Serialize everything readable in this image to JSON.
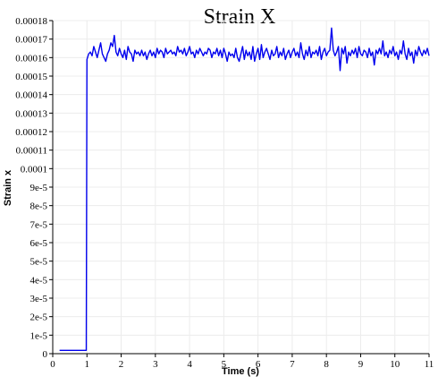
{
  "chart_data": {
    "type": "line",
    "title": "Strain X",
    "xlabel": "Time (s)",
    "ylabel": "Strain x",
    "xlim": [
      0,
      11
    ],
    "ylim": [
      0,
      0.00018
    ],
    "grid": true,
    "legend": "none",
    "x_ticks": [
      0,
      1,
      2,
      3,
      4,
      5,
      6,
      7,
      8,
      9,
      10,
      11
    ],
    "x_tick_labels": [
      "0",
      "1",
      "2",
      "3",
      "4",
      "5",
      "6",
      "7",
      "8",
      "9",
      "10",
      "11"
    ],
    "y_ticks": [
      0,
      1e-05,
      2e-05,
      3e-05,
      4e-05,
      5e-05,
      6e-05,
      7e-05,
      8e-05,
      9e-05,
      0.0001,
      0.00011,
      0.00012,
      0.00013,
      0.00014,
      0.00015,
      0.00016,
      0.00017,
      0.00018
    ],
    "y_tick_labels": [
      "0",
      "1e-5",
      "2e-5",
      "3e-5",
      "4e-5",
      "5e-5",
      "6e-5",
      "7e-5",
      "8e-5",
      "9e-5",
      "0.0001",
      "0.00011",
      "0.00012",
      "0.00013",
      "0.00014",
      "0.00015",
      "0.00016",
      "0.00017",
      "0.00018"
    ],
    "series": [
      {
        "color": "#0000ee",
        "x": [
          0.2,
          0.4,
          0.6,
          0.8,
          0.98,
          1.0,
          1.05,
          1.1,
          1.15,
          1.2,
          1.25,
          1.3,
          1.35,
          1.4,
          1.45,
          1.5,
          1.55,
          1.6,
          1.65,
          1.7,
          1.75,
          1.8,
          1.85,
          1.9,
          1.95,
          2.0,
          2.05,
          2.1,
          2.15,
          2.2,
          2.25,
          2.3,
          2.35,
          2.4,
          2.45,
          2.5,
          2.55,
          2.6,
          2.65,
          2.7,
          2.75,
          2.8,
          2.85,
          2.9,
          2.95,
          3.0,
          3.05,
          3.1,
          3.15,
          3.2,
          3.25,
          3.3,
          3.35,
          3.4,
          3.45,
          3.5,
          3.55,
          3.6,
          3.65,
          3.7,
          3.75,
          3.8,
          3.85,
          3.9,
          3.95,
          4.0,
          4.05,
          4.1,
          4.15,
          4.2,
          4.25,
          4.3,
          4.35,
          4.4,
          4.45,
          4.5,
          4.55,
          4.6,
          4.65,
          4.7,
          4.75,
          4.8,
          4.85,
          4.9,
          4.95,
          5.0,
          5.05,
          5.1,
          5.15,
          5.2,
          5.25,
          5.3,
          5.35,
          5.4,
          5.45,
          5.5,
          5.55,
          5.6,
          5.65,
          5.7,
          5.75,
          5.8,
          5.85,
          5.9,
          5.95,
          6.0,
          6.05,
          6.1,
          6.15,
          6.2,
          6.25,
          6.3,
          6.35,
          6.4,
          6.45,
          6.5,
          6.55,
          6.6,
          6.65,
          6.7,
          6.75,
          6.8,
          6.85,
          6.9,
          6.95,
          7.0,
          7.05,
          7.1,
          7.15,
          7.2,
          7.25,
          7.3,
          7.35,
          7.4,
          7.45,
          7.5,
          7.55,
          7.6,
          7.65,
          7.7,
          7.75,
          7.8,
          7.85,
          7.9,
          7.95,
          8.0,
          8.05,
          8.1,
          8.15,
          8.2,
          8.25,
          8.3,
          8.35,
          8.4,
          8.45,
          8.5,
          8.55,
          8.6,
          8.65,
          8.7,
          8.75,
          8.8,
          8.85,
          8.9,
          8.95,
          9.0,
          9.05,
          9.1,
          9.15,
          9.2,
          9.25,
          9.3,
          9.35,
          9.4,
          9.45,
          9.5,
          9.55,
          9.6,
          9.65,
          9.7,
          9.75,
          9.8,
          9.85,
          9.9,
          9.95,
          10.0,
          10.05,
          10.1,
          10.15,
          10.2,
          10.25,
          10.3,
          10.35,
          10.4,
          10.45,
          10.5,
          10.55,
          10.6,
          10.65,
          10.7,
          10.75,
          10.8,
          10.85,
          10.9,
          10.95,
          11.0
        ],
        "y": [
          1.8e-06,
          1.8e-06,
          1.8e-06,
          1.8e-06,
          1.8e-06,
          0.000159,
          0.000162,
          0.000163,
          0.000161,
          0.000166,
          0.000163,
          0.00016,
          0.000164,
          0.000168,
          0.000162,
          0.00016,
          0.000158,
          0.000162,
          0.000164,
          0.000168,
          0.000166,
          0.000172,
          0.000163,
          0.000161,
          0.000165,
          0.000162,
          0.00016,
          0.000164,
          0.000159,
          0.000166,
          0.000163,
          0.000162,
          0.000158,
          0.000164,
          0.000162,
          0.000163,
          0.000161,
          0.000164,
          0.000161,
          0.000163,
          0.000159,
          0.000162,
          0.000164,
          0.000161,
          0.000163,
          0.00016,
          0.000165,
          0.000162,
          0.000164,
          0.000163,
          0.00016,
          0.000165,
          0.000162,
          0.000163,
          0.000164,
          0.000162,
          0.000163,
          0.000161,
          0.000166,
          0.000163,
          0.000164,
          0.000162,
          0.000165,
          0.000161,
          0.000163,
          0.000166,
          0.000162,
          0.000163,
          0.00016,
          0.000164,
          0.000162,
          0.000165,
          0.000163,
          0.000161,
          0.000163,
          0.000162,
          0.000165,
          0.000164,
          0.00016,
          0.000163,
          0.000162,
          0.000165,
          0.000161,
          0.000164,
          0.00016,
          0.000165,
          0.000162,
          0.000158,
          0.000163,
          0.000161,
          0.000162,
          0.00016,
          0.000165,
          0.00016,
          0.000158,
          0.000162,
          0.000166,
          0.000159,
          0.000164,
          0.000161,
          0.000163,
          0.000159,
          0.000166,
          0.000158,
          0.000162,
          0.000165,
          0.000159,
          0.000167,
          0.00016,
          0.000163,
          0.000165,
          0.000162,
          0.000159,
          0.000164,
          0.000161,
          0.000162,
          0.000166,
          0.00016,
          0.000163,
          0.000161,
          0.000165,
          0.000159,
          0.000162,
          0.000164,
          0.00016,
          0.000163,
          0.000165,
          0.000161,
          0.000163,
          0.00016,
          0.000168,
          0.000162,
          0.000159,
          0.000164,
          0.000161,
          0.000166,
          0.00016,
          0.000163,
          0.000162,
          0.000164,
          0.000161,
          0.000166,
          0.000159,
          0.000163,
          0.000165,
          0.000161,
          0.000163,
          0.000164,
          0.000176,
          0.000164,
          0.000161,
          0.000163,
          0.000166,
          0.000153,
          0.000165,
          0.000162,
          0.000166,
          0.000157,
          0.000163,
          0.000161,
          0.000164,
          0.000162,
          0.000165,
          0.00016,
          0.000166,
          0.000162,
          0.000161,
          0.000164,
          0.000163,
          0.00016,
          0.000165,
          0.000161,
          0.000163,
          0.000156,
          0.000164,
          0.000162,
          0.000165,
          0.000162,
          0.000169,
          0.000161,
          0.000163,
          0.00016,
          0.000164,
          0.000162,
          0.000166,
          0.000161,
          0.000163,
          0.000159,
          0.000164,
          0.000162,
          0.000169,
          0.000162,
          0.000159,
          0.000165,
          0.000161,
          0.000163,
          0.000157,
          0.000164,
          0.000161,
          0.000166,
          0.000163,
          0.000161,
          0.000164,
          0.000162,
          0.000165,
          0.000161
        ]
      }
    ]
  }
}
